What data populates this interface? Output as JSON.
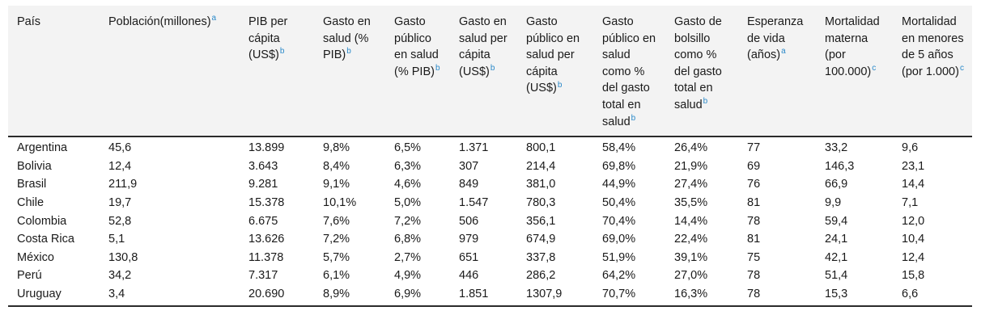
{
  "table": {
    "headers": [
      {
        "text": "País",
        "sup": ""
      },
      {
        "text": "Población(millones)",
        "sup": "a"
      },
      {
        "text": "PIB per cápita (US$)",
        "sup": "b"
      },
      {
        "text": "Gasto en salud (% PIB)",
        "sup": "b"
      },
      {
        "text": "Gasto público en salud (% PIB)",
        "sup": "b"
      },
      {
        "text": "Gasto en salud per cápita (US$)",
        "sup": "b"
      },
      {
        "text": "Gasto público en salud per cápita (US$)",
        "sup": "b"
      },
      {
        "text": "Gasto público en salud como % del gasto total en salud",
        "sup": "b"
      },
      {
        "text": "Gasto de bolsillo como % del gasto total en salud",
        "sup": "b"
      },
      {
        "text": "Esperanza de vida (años)",
        "sup": "a"
      },
      {
        "text": "Mortalidad materna (por 100.000)",
        "sup": "c"
      },
      {
        "text": "Mortalidad en menores de 5 años (por 1.000)",
        "sup": "c"
      }
    ],
    "rows": [
      [
        "Argentina",
        "45,6",
        "13.899",
        "9,8%",
        "6,5%",
        "1.371",
        "800,1",
        "58,4%",
        "26,4%",
        "77",
        "33,2",
        "9,6"
      ],
      [
        "Bolivia",
        "12,4",
        "3.643",
        "8,4%",
        "6,3%",
        "307",
        "214,4",
        "69,8%",
        "21,9%",
        "69",
        "146,3",
        "23,1"
      ],
      [
        "Brasil",
        "211,9",
        "9.281",
        "9,1%",
        "4,6%",
        "849",
        "381,0",
        "44,9%",
        "27,4%",
        "76",
        "66,9",
        "14,4"
      ],
      [
        "Chile",
        "19,7",
        "15.378",
        "10,1%",
        "5,0%",
        "1.547",
        "780,3",
        "50,4%",
        "35,5%",
        "81",
        "9,9",
        "7,1"
      ],
      [
        "Colombia",
        "52,8",
        "6.675",
        "7,6%",
        "7,2%",
        "506",
        "356,1",
        "70,4%",
        "14,4%",
        "78",
        "59,4",
        "12,0"
      ],
      [
        "Costa Rica",
        "5,1",
        "13.626",
        "7,2%",
        "6,8%",
        "979",
        "674,9",
        "69,0%",
        "22,4%",
        "81",
        "24,1",
        "10,4"
      ],
      [
        "México",
        "130,8",
        "11.378",
        "5,7%",
        "2,7%",
        "651",
        "337,8",
        "51,9%",
        "39,1%",
        "75",
        "42,1",
        "12,4"
      ],
      [
        "Perú",
        "34,2",
        "7.317",
        "6,1%",
        "4,9%",
        "446",
        "286,2",
        "64,2%",
        "27,0%",
        "78",
        "51,4",
        "15,8"
      ],
      [
        "Uruguay",
        "3,4",
        "20.690",
        "8,9%",
        "6,9%",
        "1.851",
        "1307,9",
        "70,7%",
        "16,3%",
        "78",
        "15,3",
        "6,6"
      ]
    ]
  }
}
